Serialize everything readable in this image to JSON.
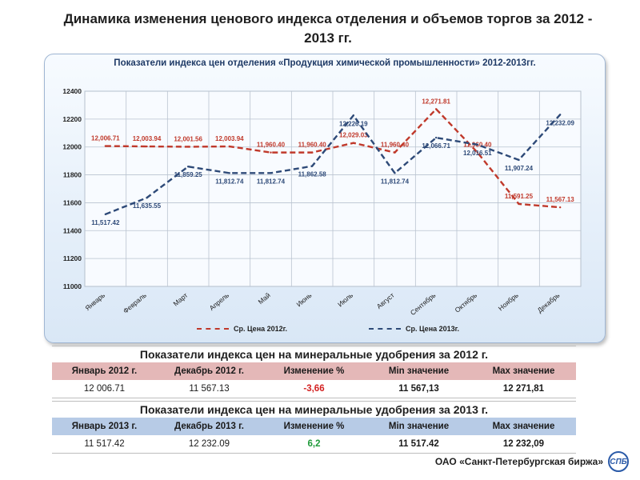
{
  "page": {
    "title": "Динамика изменения  ценового индекса отделения и объемов торгов за 2012 - 2013 гг."
  },
  "chart_data": {
    "type": "line",
    "title": "Показатели индекса цен отделения «Продукция химической промышленности» 2012-2013гг.",
    "categories": [
      "Январь",
      "Февраль",
      "Март",
      "Апрель",
      "Май",
      "Июнь",
      "Июль",
      "Август",
      "Сентябрь",
      "Октябрь",
      "Ноябрь",
      "Декабрь"
    ],
    "ylim": [
      11000,
      12400
    ],
    "yticks": [
      11000,
      11200,
      11400,
      11600,
      11800,
      12000,
      12200,
      12400
    ],
    "grid": true,
    "legend_position": "bottom",
    "series": [
      {
        "name": "Ср. Цена 2012г.",
        "color": "#c0392b",
        "values": [
          12006.71,
          12003.94,
          12001.56,
          12003.94,
          11960.4,
          11960.4,
          12029.03,
          11960.4,
          12271.81,
          11960.4,
          11591.25,
          11567.13
        ],
        "labels": [
          "12,006.71",
          "12,003.94",
          "12,001.56",
          "12,003.94",
          "11,960.40",
          "11,960.40",
          "12,029.03",
          "11,960.40",
          "12,271.81",
          "11,960.40",
          "11,591.25",
          "11,567.13"
        ]
      },
      {
        "name": "Ср. Цена 2013г.",
        "color": "#2e4a78",
        "values": [
          11517.42,
          11635.55,
          11859.25,
          11812.74,
          11812.74,
          11862.58,
          12226.19,
          11812.74,
          12066.71,
          12016.51,
          11907.24,
          12232.09
        ],
        "labels": [
          "11,517.42",
          "11,635.55",
          "11,859.25",
          "11,812.74",
          "11,812.74",
          "11,862.58",
          "12,226.19",
          "11,812.74",
          "12,066.71",
          "12,016.51",
          "11,907.24",
          "12,232.09"
        ]
      }
    ]
  },
  "tables": [
    {
      "title": "Показатели индекса цен на минеральные удобрения за 2012 г.",
      "headers": [
        "Январь 2012 г.",
        "Декабрь 2012 г.",
        "Изменение %",
        "Min значение",
        "Max значение"
      ],
      "values": [
        "12 006.71",
        "11 567.13",
        "-3,66",
        "11 567,13",
        "12 271,81"
      ]
    },
    {
      "title": "Показатели индекса цен на минеральные удобрения за 2013 г.",
      "headers": [
        "Январь 2013 г.",
        "Декабрь 2013 г.",
        "Изменение %",
        "Min значение",
        "Max значение"
      ],
      "values": [
        "11 517.42",
        "12 232.09",
        "6,2",
        "11 517.42",
        "12 232,09"
      ]
    }
  ],
  "footer": {
    "org": "ОАО «Санкт-Петербургская биржа»",
    "logo_text": "СПБ",
    "logo_icon": "exchange-logo-icon"
  }
}
